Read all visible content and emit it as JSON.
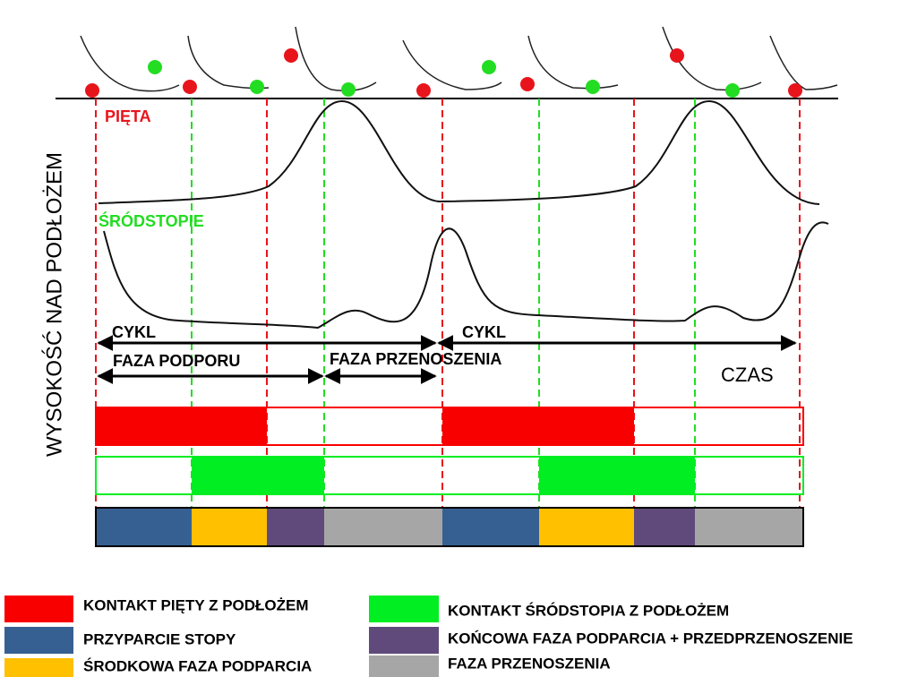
{
  "axis_label": "WYSOKOŚĆ NAD PODŁOŻEM",
  "curves": {
    "heel": "PIĘTA",
    "midfoot": "ŚRÓDSTOPIE"
  },
  "annotations": {
    "cycle_1": "CYKL",
    "cycle_2": "CYKL",
    "stance": "FAZA PODPORU",
    "swing": "FAZA PRZENOSZENIA",
    "time": "CZAS"
  },
  "legend": [
    "KONTAKT PIĘTY Z PODŁOŻEM",
    "PRZYPARCIE STOPY",
    "ŚRODKOWA FAZA PODPARCIA",
    "KONTAKT ŚRÓDSTOPIA Z PODŁOŻEM",
    "KOŃCOWA FAZA PODPARCIA + PRZEDPRZENOSZENIE",
    "FAZA PRZENOSZENIA"
  ]
}
